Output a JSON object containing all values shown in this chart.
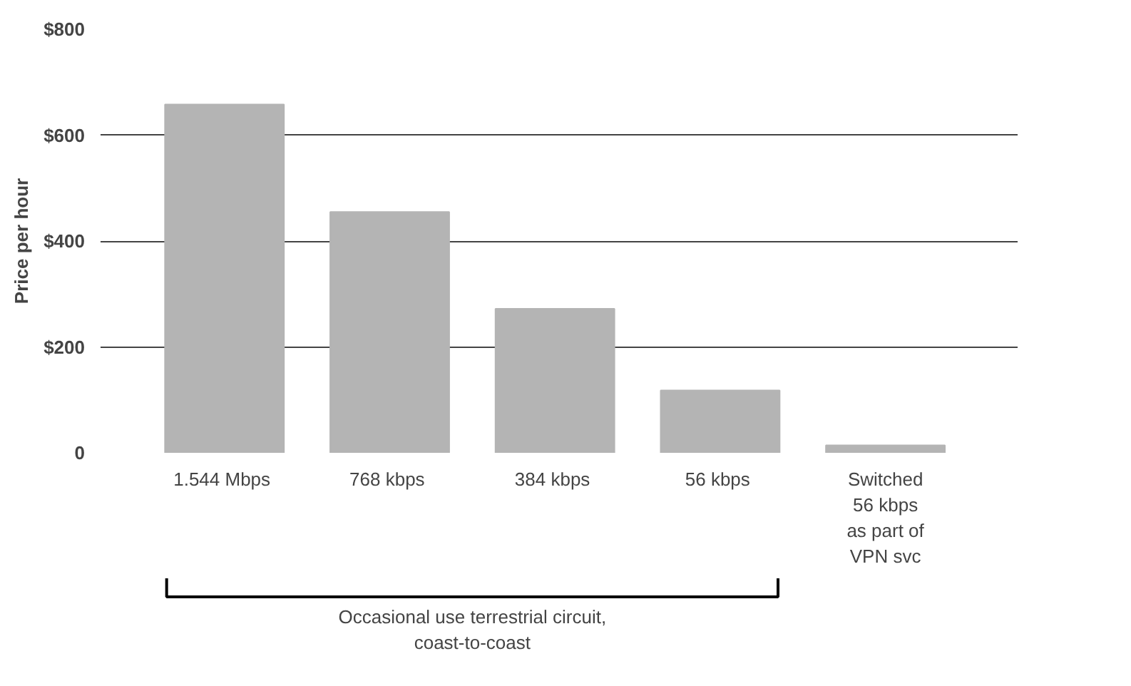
{
  "chart_data": {
    "type": "bar",
    "ylabel": "Price per hour",
    "categories": [
      "1.544  Mbps",
      "768  kbps",
      "384  kbps",
      "56  kbps",
      "Switched\n56 kbps\nas part of\nVPN svc"
    ],
    "values": [
      658,
      455,
      272,
      118,
      14
    ],
    "color": "#b4b4b4",
    "ylim": [
      0,
      800
    ],
    "yticks": [
      {
        "value": 0,
        "label": "0"
      },
      {
        "value": 200,
        "label": "$200"
      },
      {
        "value": 400,
        "label": "$400"
      },
      {
        "value": 600,
        "label": "$600"
      },
      {
        "value": 800,
        "label": "$800"
      }
    ],
    "grid": "y",
    "annotations": [
      "Occasional use terrestrial circuit,\ncoast-to-coast"
    ]
  }
}
